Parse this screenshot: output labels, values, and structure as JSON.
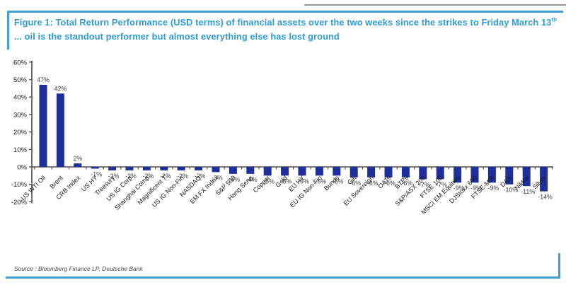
{
  "figure": {
    "title_prefix": "Figure 1: Total Return Performance (USD terms) of financial assets over the two weeks since the strikes to Friday March 13",
    "title_sup": "th",
    "title_suffix": " ... oil is the standout performer but almost everything else has lost ground",
    "source": "Source : Bloomberg Finance LP, Deutsche Bank"
  },
  "colors": {
    "title_blue": "#2e9bd6",
    "border_blue": "#3ba1d6",
    "bar_navy": "#1f2f9c",
    "axis_gray": "#4d4d4d",
    "value_label": "#3c3c3c",
    "tick_label": "#1a1a1a"
  },
  "chart_data": {
    "type": "bar",
    "title": "Total Return Performance (USD terms) of financial assets over the two weeks since the strikes to Friday March 13th",
    "xlabel": "",
    "ylabel": "",
    "ylim": [
      -20,
      60
    ],
    "ytick_step": 10,
    "ytick_labels": [
      "60%",
      "50%",
      "40%",
      "30%",
      "20%",
      "10%",
      "0%",
      "-10%",
      "-20%"
    ],
    "grid": false,
    "legend": null,
    "value_suffix": "%",
    "categories": [
      "US WTI Oil",
      "Brent",
      "CRB Index",
      "US HY",
      "Treasury",
      "US IG Corp",
      "Shanghai Comp",
      "Magnificent 7",
      "US IG Non-Fin",
      "NASDAQ",
      "EM FX Index",
      "S&P 500",
      "Hang Seng",
      "Copper",
      "Gold",
      "EU HY",
      "EU IG Non-Fin",
      "Bunds",
      "Gilt",
      "EU Sovereign",
      "OATs",
      "BTPs",
      "S&P/ASX 200",
      "FTSE 100",
      "MSCI EM Equities",
      "DJStoxx 600",
      "FTSE-MIB",
      "DAX",
      "Nikkei",
      "Silver"
    ],
    "values": [
      47,
      42,
      2,
      -1,
      -2,
      -2,
      -2,
      -2,
      -2,
      -2,
      -3,
      -4,
      -4,
      -5,
      -5,
      -5,
      -5,
      -5,
      -6,
      -6,
      -6,
      -6,
      -7,
      -7,
      -9,
      -9,
      -9,
      -10,
      -11,
      -14
    ]
  }
}
